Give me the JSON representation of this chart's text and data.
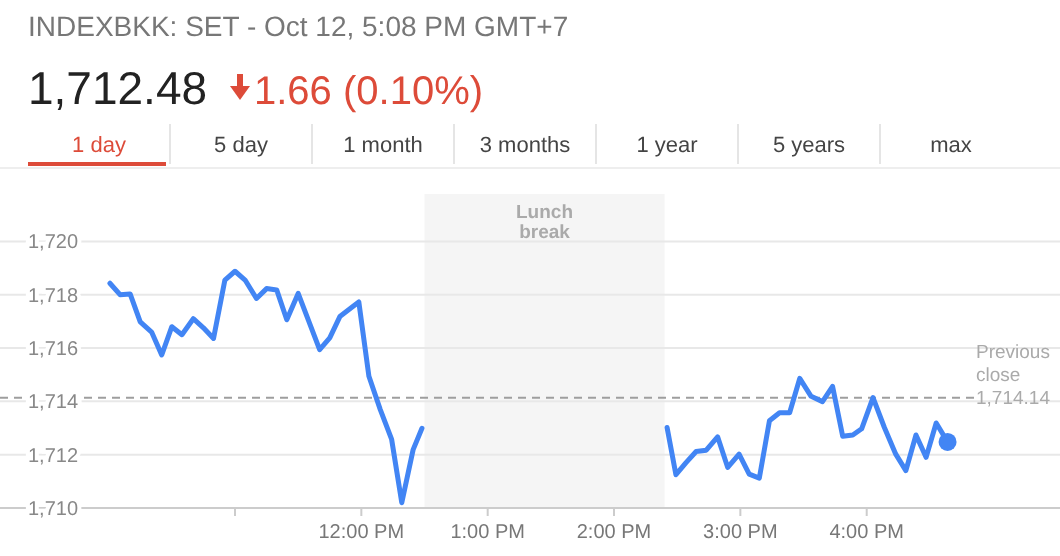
{
  "chart_data": {
    "type": "line",
    "title": "INDEXBKK: SET - Oct 12, 5:08 PM GMT+7",
    "subtitle": "1,712.48",
    "annotations": [
      "1.66 (0.10%)",
      "1 day",
      "5 day",
      "1 month",
      "3 months",
      "1 year",
      "5 years",
      "max"
    ],
    "xlim": [
      9.14,
      17.53
    ],
    "ylim": [
      1710,
      1720
    ],
    "xticks": [
      {
        "value": 11,
        "label": null
      },
      {
        "value": 12,
        "label": "12:00 PM"
      },
      {
        "value": 13,
        "label": "1:00 PM"
      },
      {
        "value": 14,
        "label": "2:00 PM"
      },
      {
        "value": 15,
        "label": "3:00 PM"
      },
      {
        "value": 16,
        "label": "4:00 PM"
      }
    ],
    "yticks": [
      {
        "value": 1710,
        "label": "1,710"
      },
      {
        "value": 1712,
        "label": "1,712"
      },
      {
        "value": 1714,
        "label": "1,714"
      },
      {
        "value": 1716,
        "label": "1,716"
      },
      {
        "value": 1718,
        "label": "1,718"
      },
      {
        "value": 1720,
        "label": "1,720"
      }
    ],
    "grid": "y",
    "marker": "none",
    "line_style": "solid",
    "ref_lines": [
      {
        "axis": "y",
        "value": 1714.14,
        "label": "Previous close 1,714.14",
        "color": "#9e9e9e",
        "line_style": "dashed"
      }
    ],
    "bands": [
      {
        "axis": "x",
        "from": 12.5,
        "to": 14.4,
        "label": "Lunch break",
        "color": "#f5f5f5"
      }
    ],
    "series": [
      {
        "color": "#4285f4",
        "x": [
          10.01,
          10.09,
          10.17,
          10.25,
          10.34,
          10.42,
          10.5,
          10.58,
          10.67,
          10.75,
          10.83,
          10.92,
          11.0,
          11.08,
          11.17,
          11.25,
          11.33,
          11.41,
          11.5,
          11.58,
          11.67,
          11.75,
          11.83,
          11.92,
          11.98,
          12.06,
          12.15,
          12.24,
          12.32,
          12.41,
          12.48,
          13.5,
          14.42,
          14.49,
          14.57,
          14.65,
          14.73,
          14.82,
          14.9,
          14.99,
          15.07,
          15.15,
          15.23,
          15.31,
          15.39,
          15.47,
          15.56,
          15.65,
          15.73,
          15.81,
          15.89,
          15.96,
          16.05,
          16.14,
          16.23,
          16.31,
          16.39,
          16.47,
          16.55,
          16.64
        ],
        "values": [
          1718.43,
          1718.0,
          1718.03,
          1716.98,
          1716.6,
          1715.74,
          1716.8,
          1716.5,
          1717.1,
          1716.76,
          1716.36,
          1718.55,
          1718.88,
          1718.55,
          1717.86,
          1718.23,
          1718.18,
          1717.06,
          1718.05,
          1717.06,
          1715.94,
          1716.38,
          1717.18,
          1717.51,
          1717.73,
          1714.94,
          1713.69,
          1712.57,
          1710.2,
          1712.19,
          1712.99,
          null,
          1713.02,
          1711.25,
          1711.7,
          1712.12,
          1712.17,
          1712.67,
          1711.52,
          1712.02,
          1711.27,
          1711.12,
          1713.27,
          1713.57,
          1713.57,
          1714.86,
          1714.19,
          1713.99,
          1714.56,
          1712.69,
          1712.74,
          1712.97,
          1714.14,
          1713.02,
          1712.02,
          1711.4,
          1712.74,
          1711.9,
          1713.19,
          1712.48
        ]
      },
      {
        "type": "scatter",
        "color": "#4285f4",
        "marker": "circle",
        "x": [
          16.64
        ],
        "values": [
          1712.48
        ]
      }
    ]
  }
}
